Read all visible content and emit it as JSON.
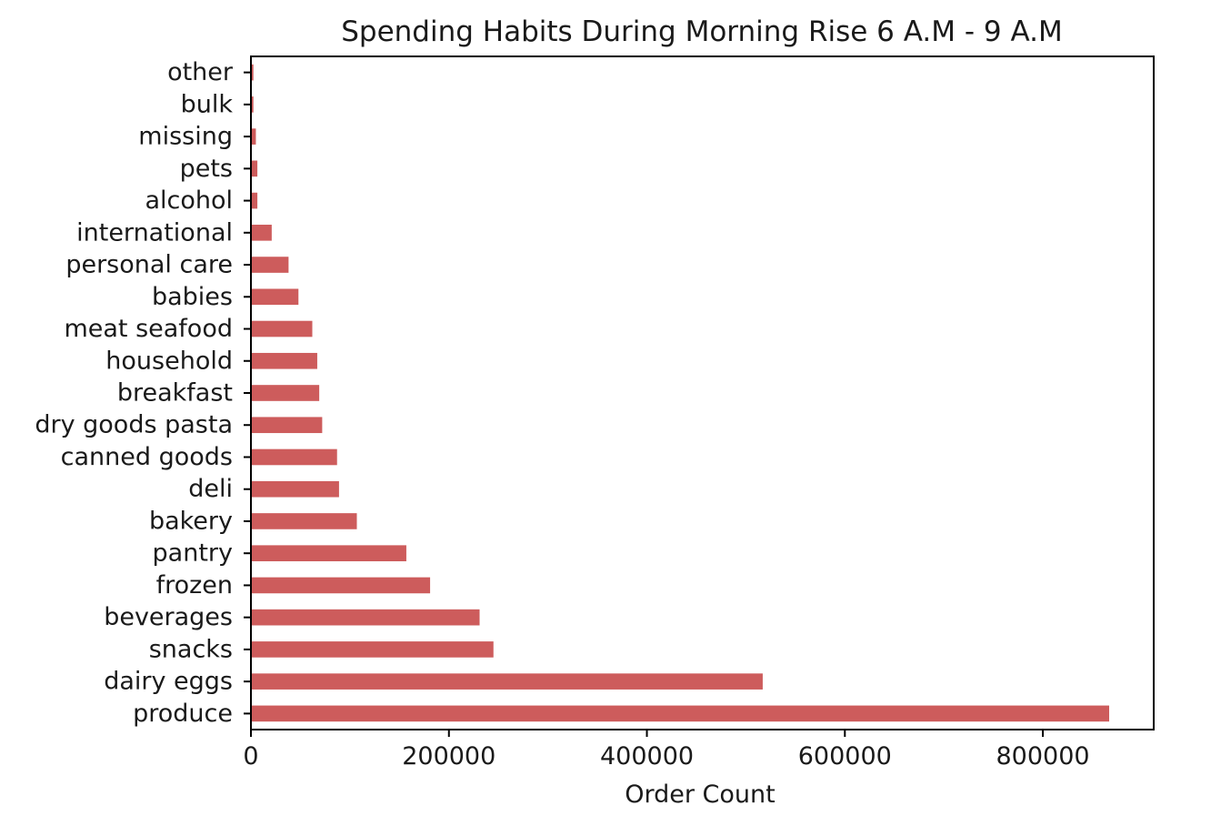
{
  "chart_data": {
    "type": "bar",
    "orientation": "horizontal",
    "title": "Spending Habits During Morning Rise 6 A.M - 9 A.M",
    "xlabel": "Order Count",
    "ylabel": "",
    "xlim": [
      0,
      912000
    ],
    "xticks": [
      0,
      200000,
      400000,
      600000,
      800000
    ],
    "grid": false,
    "legend": false,
    "bar_color": "#cd5c5c",
    "categories": [
      "produce",
      "dairy eggs",
      "snacks",
      "beverages",
      "frozen",
      "pantry",
      "bakery",
      "deli",
      "canned goods",
      "dry goods pasta",
      "breakfast",
      "household",
      "meat seafood",
      "babies",
      "personal care",
      "international",
      "alcohol",
      "pets",
      "missing",
      "bulk",
      "other"
    ],
    "values": [
      867000,
      517000,
      245000,
      231000,
      181000,
      157000,
      107000,
      89000,
      87000,
      72000,
      69000,
      67000,
      62000,
      48000,
      38000,
      21000,
      6500,
      6500,
      5000,
      2500,
      2500
    ]
  }
}
